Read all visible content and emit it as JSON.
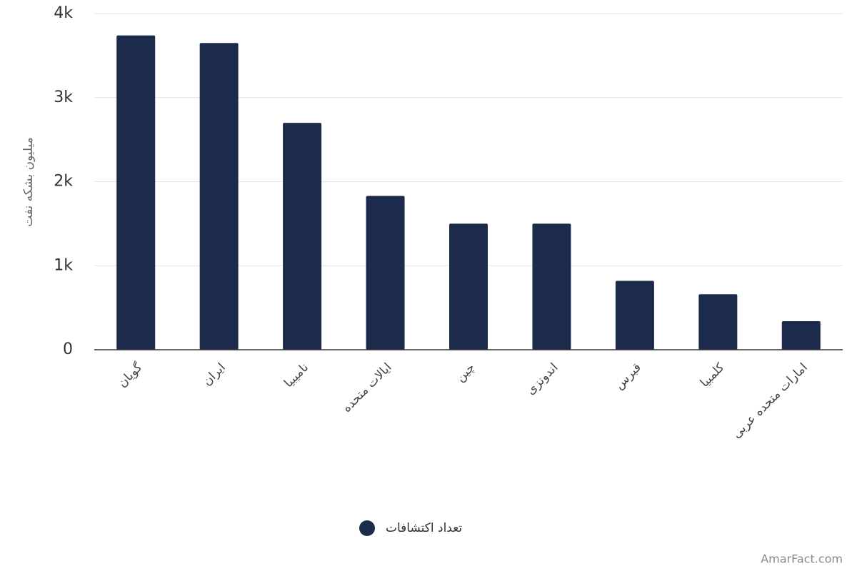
{
  "chart_data": {
    "type": "bar",
    "y_label": "میلیون بشکه نفت",
    "categories": [
      "گویان",
      "ایران",
      "نامیبیا",
      "ایالات متحده",
      "چین",
      "اندونزی",
      "قبرس",
      "کلمبیا",
      "امارات متحده عربی"
    ],
    "series": [
      {
        "name": "تعداد اکتشافات",
        "color": "#1c2a4c",
        "values": [
          3740,
          3650,
          2700,
          1830,
          1500,
          1500,
          820,
          660,
          340
        ]
      }
    ],
    "ylim": [
      0,
      4000
    ],
    "yticks": [
      0,
      {
        "value": 1000,
        "label": "1k"
      },
      {
        "value": 2000,
        "label": "2k"
      },
      {
        "value": 3000,
        "label": "3k"
      },
      {
        "value": 4000,
        "label": "4k"
      }
    ],
    "grid": true,
    "source": "AmarFact.com"
  }
}
